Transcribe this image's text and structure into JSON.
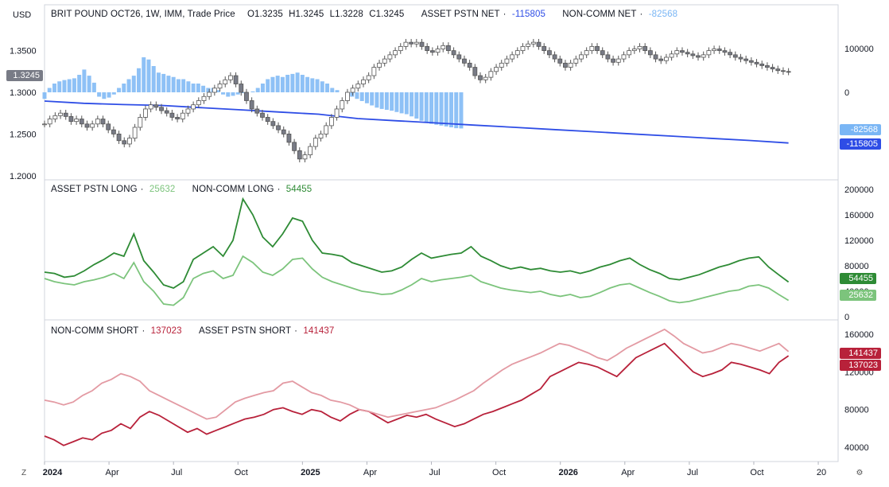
{
  "symbol_label": "BRIT POUND OCT26, 1W, IMM, Trade Price",
  "ohlc": {
    "o": "O1.3235",
    "h": "H1.3245",
    "l": "L1.3228",
    "c": "C1.3245"
  },
  "currency_label": "USD",
  "last_price_tag": "1.3245",
  "colors": {
    "candle_up": "#ffffff",
    "candle_down": "#787b86",
    "candle_border": "#555555",
    "asset_net": "#2e4de6",
    "noncomm_net": "#7ab6f5",
    "asset_long": "#7cc47c",
    "noncomm_long": "#2e8b35",
    "noncomm_short": "#b8213a",
    "asset_short": "#e39aa3",
    "grid": "#e6e8ee",
    "text": "#131722"
  },
  "pane1": {
    "legend": [
      {
        "label": "ASSET PSTN NET",
        "value": "-115805",
        "color": "#2e4de6"
      },
      {
        "label": "NON-COMM NET",
        "value": "-82568",
        "color": "#7ab6f5"
      }
    ],
    "left_ticks": [
      "1.3500",
      "1.3000",
      "1.2500",
      "1.2000"
    ],
    "right_ticks": [
      "100000",
      "0"
    ],
    "tags": [
      {
        "text": "-82568",
        "bg": "#7ab6f5"
      },
      {
        "text": "-115805",
        "bg": "#2e4de6"
      }
    ]
  },
  "pane2": {
    "legend": [
      {
        "label": "ASSET PSTN LONG",
        "value": "25632",
        "color": "#7cc47c"
      },
      {
        "label": "NON-COMM LONG",
        "value": "54455",
        "color": "#2e8b35"
      }
    ],
    "right_ticks": [
      "200000",
      "160000",
      "120000",
      "80000",
      "40000",
      "0"
    ],
    "tags": [
      {
        "text": "54455",
        "bg": "#2e8b35"
      },
      {
        "text": "25632",
        "bg": "#7cc47c"
      }
    ]
  },
  "pane3": {
    "legend": [
      {
        "label": "NON-COMM SHORT",
        "value": "137023",
        "color": "#b8213a"
      },
      {
        "label": "ASSET PSTN SHORT",
        "value": "141437",
        "color": "#e39aa3"
      }
    ],
    "right_ticks": [
      "160000",
      "120000",
      "80000",
      "40000"
    ],
    "tags": [
      {
        "text": "141437",
        "bg": "#b8213a"
      },
      {
        "text": "137023",
        "bg": "#b8213a"
      }
    ]
  },
  "x_ticks": [
    {
      "label": "2024",
      "bold": true,
      "t": 0
    },
    {
      "label": "Apr",
      "t": 13
    },
    {
      "label": "Jul",
      "t": 26
    },
    {
      "label": "Oct",
      "t": 39
    },
    {
      "label": "2025",
      "bold": true,
      "t": 52
    },
    {
      "label": "Apr",
      "t": 65
    },
    {
      "label": "Jul",
      "t": 78
    },
    {
      "label": "Oct",
      "t": 91
    },
    {
      "label": "2026",
      "bold": true,
      "t": 104
    },
    {
      "label": "Apr",
      "t": 117
    },
    {
      "label": "Jul",
      "t": 130
    },
    {
      "label": "Oct",
      "t": 143
    },
    {
      "label": "20",
      "t": 156
    }
  ],
  "buttons": {
    "timezone": "Z",
    "settings": "⚙"
  },
  "chart_data": [
    {
      "type": "candlestick",
      "title": "BRIT POUND OCT26, 1W, IMM, Trade Price",
      "ylabel": "USD",
      "ylim": [
        1.195,
        1.405
      ],
      "x_start": "2024-01-05",
      "x_step": "1 week",
      "close": [
        1.262,
        1.268,
        1.272,
        1.275,
        1.271,
        1.265,
        1.268,
        1.262,
        1.258,
        1.262,
        1.268,
        1.262,
        1.255,
        1.25,
        1.242,
        1.238,
        1.245,
        1.258,
        1.27,
        1.28,
        1.285,
        1.282,
        1.278,
        1.275,
        1.27,
        1.268,
        1.275,
        1.28,
        1.285,
        1.29,
        1.295,
        1.3,
        1.305,
        1.31,
        1.315,
        1.32,
        1.31,
        1.3,
        1.29,
        1.28,
        1.275,
        1.27,
        1.265,
        1.26,
        1.255,
        1.25,
        1.24,
        1.23,
        1.22,
        1.225,
        1.235,
        1.245,
        1.25,
        1.26,
        1.27,
        1.28,
        1.29,
        1.3,
        1.305,
        1.31,
        1.315,
        1.32,
        1.33,
        1.335,
        1.34,
        1.345,
        1.35,
        1.355,
        1.36,
        1.358,
        1.36,
        1.355,
        1.35,
        1.348,
        1.352,
        1.356,
        1.35,
        1.345,
        1.34,
        1.335,
        1.33,
        1.32,
        1.315,
        1.318,
        1.325,
        1.33,
        1.335,
        1.34,
        1.345,
        1.35,
        1.355,
        1.358,
        1.36,
        1.355,
        1.35,
        1.345,
        1.34,
        1.335,
        1.33,
        1.335,
        1.34,
        1.345,
        1.35,
        1.355,
        1.35,
        1.345,
        1.34,
        1.336,
        1.34,
        1.345,
        1.35,
        1.352,
        1.355,
        1.35,
        1.345,
        1.34,
        1.338,
        1.342,
        1.346,
        1.35,
        1.348,
        1.346,
        1.344,
        1.342,
        1.345,
        1.35,
        1.352,
        1.35,
        1.348,
        1.345,
        1.342,
        1.34,
        1.338,
        1.336,
        1.334,
        1.332,
        1.33,
        1.328,
        1.326,
        1.325,
        1.3245
      ]
    },
    {
      "type": "bar+line",
      "name": "pane1 net positions",
      "ylim": [
        -200000,
        200000
      ],
      "series": [
        {
          "name": "NON-COMM NET",
          "type": "bar",
          "values": [
            -15000,
            10000,
            20000,
            25000,
            28000,
            30000,
            32000,
            40000,
            52000,
            38000,
            22000,
            -10000,
            -15000,
            -12000,
            -5000,
            10000,
            20000,
            30000,
            38000,
            55000,
            80000,
            75000,
            60000,
            45000,
            42000,
            38000,
            35000,
            30000,
            30000,
            25000,
            20000,
            20000,
            15000,
            10000,
            10000,
            5000,
            -5000,
            -10000,
            -8000,
            -5000,
            -2000,
            0,
            2000,
            10000,
            20000,
            30000,
            35000,
            38000,
            35000,
            40000,
            42000,
            45000,
            40000,
            35000,
            32000,
            30000,
            25000,
            20000,
            10000,
            5000,
            0,
            -5000,
            -10000,
            -15000,
            -20000,
            -25000,
            -30000,
            -35000,
            -38000,
            -40000,
            -42000,
            -45000,
            -48000,
            -50000,
            -55000,
            -60000,
            -65000,
            -70000,
            -72000,
            -74000,
            -76000,
            -78000,
            -80000,
            -82000,
            -82568
          ],
          "offset": 64
        },
        {
          "name": "ASSET PSTN NET",
          "type": "line",
          "values": [
            -20000,
            -25000,
            -28000,
            -30000,
            -35000,
            -40000,
            -45000,
            -50000,
            -60000,
            -65000,
            -70000,
            -75000,
            -80000,
            -85000,
            -90000,
            -95000,
            -100000,
            -105000,
            -110000,
            -115805
          ]
        }
      ]
    },
    {
      "type": "line",
      "name": "pane2 long positions",
      "ylim": [
        0,
        210000
      ],
      "series": [
        {
          "name": "NON-COMM LONG",
          "values": [
            70000,
            68000,
            62000,
            64000,
            72000,
            82000,
            90000,
            100000,
            95000,
            130000,
            88000,
            70000,
            50000,
            45000,
            55000,
            90000,
            100000,
            110000,
            95000,
            120000,
            185000,
            160000,
            125000,
            110000,
            130000,
            155000,
            150000,
            120000,
            100000,
            98000,
            95000,
            85000,
            80000,
            75000,
            70000,
            72000,
            78000,
            90000,
            100000,
            92000,
            95000,
            98000,
            100000,
            110000,
            95000,
            88000,
            80000,
            75000,
            78000,
            74000,
            76000,
            72000,
            70000,
            72000,
            68000,
            72000,
            78000,
            82000,
            88000,
            92000,
            82000,
            74000,
            68000,
            60000,
            58000,
            62000,
            66000,
            72000,
            78000,
            82000,
            88000,
            92000,
            94000,
            78000,
            66000,
            54455
          ]
        },
        {
          "name": "ASSET PSTN LONG",
          "values": [
            60000,
            55000,
            52000,
            50000,
            55000,
            58000,
            62000,
            68000,
            60000,
            85000,
            55000,
            40000,
            20000,
            18000,
            30000,
            60000,
            68000,
            72000,
            60000,
            65000,
            95000,
            85000,
            70000,
            65000,
            75000,
            90000,
            92000,
            75000,
            62000,
            55000,
            50000,
            45000,
            40000,
            38000,
            35000,
            36000,
            42000,
            50000,
            60000,
            55000,
            58000,
            60000,
            62000,
            65000,
            55000,
            50000,
            45000,
            42000,
            40000,
            38000,
            40000,
            35000,
            32000,
            35000,
            30000,
            32000,
            38000,
            45000,
            50000,
            52000,
            45000,
            38000,
            32000,
            25000,
            22000,
            24000,
            28000,
            32000,
            36000,
            40000,
            42000,
            48000,
            50000,
            45000,
            35000,
            25632
          ]
        }
      ]
    },
    {
      "type": "line",
      "name": "pane3 short positions",
      "ylim": [
        25000,
        175000
      ],
      "series": [
        {
          "name": "NON-COMM SHORT",
          "values": [
            52000,
            48000,
            42000,
            46000,
            50000,
            48000,
            55000,
            58000,
            65000,
            60000,
            72000,
            78000,
            74000,
            68000,
            62000,
            56000,
            60000,
            54000,
            58000,
            62000,
            66000,
            70000,
            72000,
            75000,
            80000,
            82000,
            78000,
            75000,
            80000,
            78000,
            72000,
            68000,
            75000,
            80000,
            78000,
            72000,
            66000,
            70000,
            74000,
            72000,
            75000,
            70000,
            66000,
            62000,
            65000,
            70000,
            75000,
            78000,
            82000,
            86000,
            90000,
            96000,
            102000,
            115000,
            120000,
            125000,
            130000,
            128000,
            125000,
            120000,
            115000,
            125000,
            135000,
            140000,
            145000,
            150000,
            140000,
            130000,
            120000,
            115000,
            118000,
            122000,
            130000,
            128000,
            125000,
            122000,
            118000,
            130000,
            137023
          ]
        },
        {
          "name": "ASSET PSTN SHORT",
          "values": [
            90000,
            88000,
            85000,
            88000,
            95000,
            100000,
            108000,
            112000,
            118000,
            115000,
            110000,
            100000,
            95000,
            90000,
            85000,
            80000,
            75000,
            70000,
            72000,
            80000,
            88000,
            92000,
            95000,
            98000,
            100000,
            108000,
            110000,
            104000,
            98000,
            95000,
            90000,
            88000,
            85000,
            80000,
            78000,
            75000,
            72000,
            74000,
            76000,
            78000,
            80000,
            82000,
            86000,
            90000,
            95000,
            100000,
            108000,
            115000,
            122000,
            128000,
            132000,
            136000,
            140000,
            145000,
            150000,
            148000,
            144000,
            140000,
            135000,
            132000,
            138000,
            145000,
            150000,
            155000,
            160000,
            165000,
            158000,
            150000,
            145000,
            140000,
            142000,
            146000,
            150000,
            148000,
            145000,
            142000,
            146000,
            150000,
            141437
          ]
        }
      ]
    }
  ]
}
